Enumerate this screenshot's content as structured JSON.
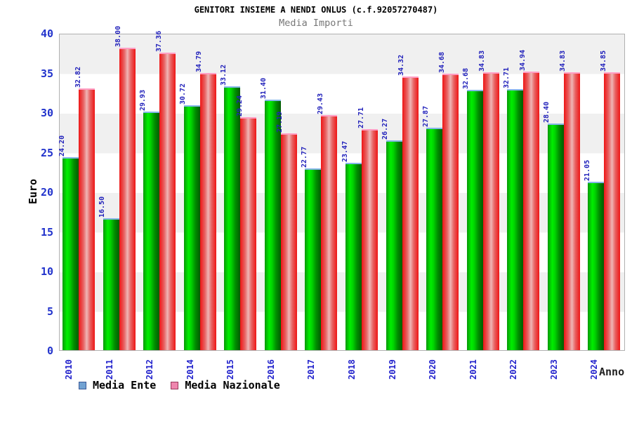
{
  "title": "GENITORI INSIEME A NENDI ONLUS (c.f.92057270487)",
  "subtitle": "Media Importi",
  "y_axis_title": "Euro",
  "x_axis_title": "Anno",
  "legend": {
    "items": [
      {
        "label": "Media Ente",
        "swatch": "#72a2d2",
        "swatch_border": "#3b5998"
      },
      {
        "label": "Media Nazionale",
        "swatch": "#ef86ae",
        "swatch_border": "#98395b"
      }
    ]
  },
  "colors": {
    "axis_label_blue": "#2222bb",
    "bar_green": "#00cc00",
    "bar_green_cap": "#85b6e8",
    "bar_red": "#ee2222",
    "bar_red_cap": "#ff9ec4",
    "band_gray": "#f0f0f0",
    "plot_border": "#b0b0b0",
    "title_black": "#000000",
    "subtitle_gray": "#777777"
  },
  "chart_data": {
    "type": "bar",
    "title": "GENITORI INSIEME A NENDI ONLUS (c.f.92057270487)",
    "subtitle": "Media Importi",
    "xlabel": "Anno",
    "ylabel": "Euro",
    "ylim": [
      0,
      40
    ],
    "yticks": [
      0,
      5,
      10,
      15,
      20,
      25,
      30,
      35,
      40
    ],
    "grid": "alternating-bands",
    "legend_position": "bottom",
    "categories": [
      "2010",
      "2011",
      "2012",
      "2014",
      "2015",
      "2016",
      "2017",
      "2018",
      "2019",
      "2020",
      "2021",
      "2022",
      "2023",
      "2024"
    ],
    "series": [
      {
        "name": "Media Ente",
        "color": "green",
        "values": [
          24.2,
          16.5,
          29.93,
          30.72,
          33.12,
          31.4,
          22.77,
          23.47,
          26.27,
          27.87,
          32.68,
          32.71,
          28.4,
          21.05
        ]
      },
      {
        "name": "Media Nazionale",
        "color": "red",
        "values": [
          32.82,
          38.0,
          37.36,
          34.79,
          29.24,
          27.19,
          29.43,
          27.71,
          34.32,
          34.68,
          34.83,
          34.94,
          34.83,
          34.85
        ]
      }
    ]
  }
}
